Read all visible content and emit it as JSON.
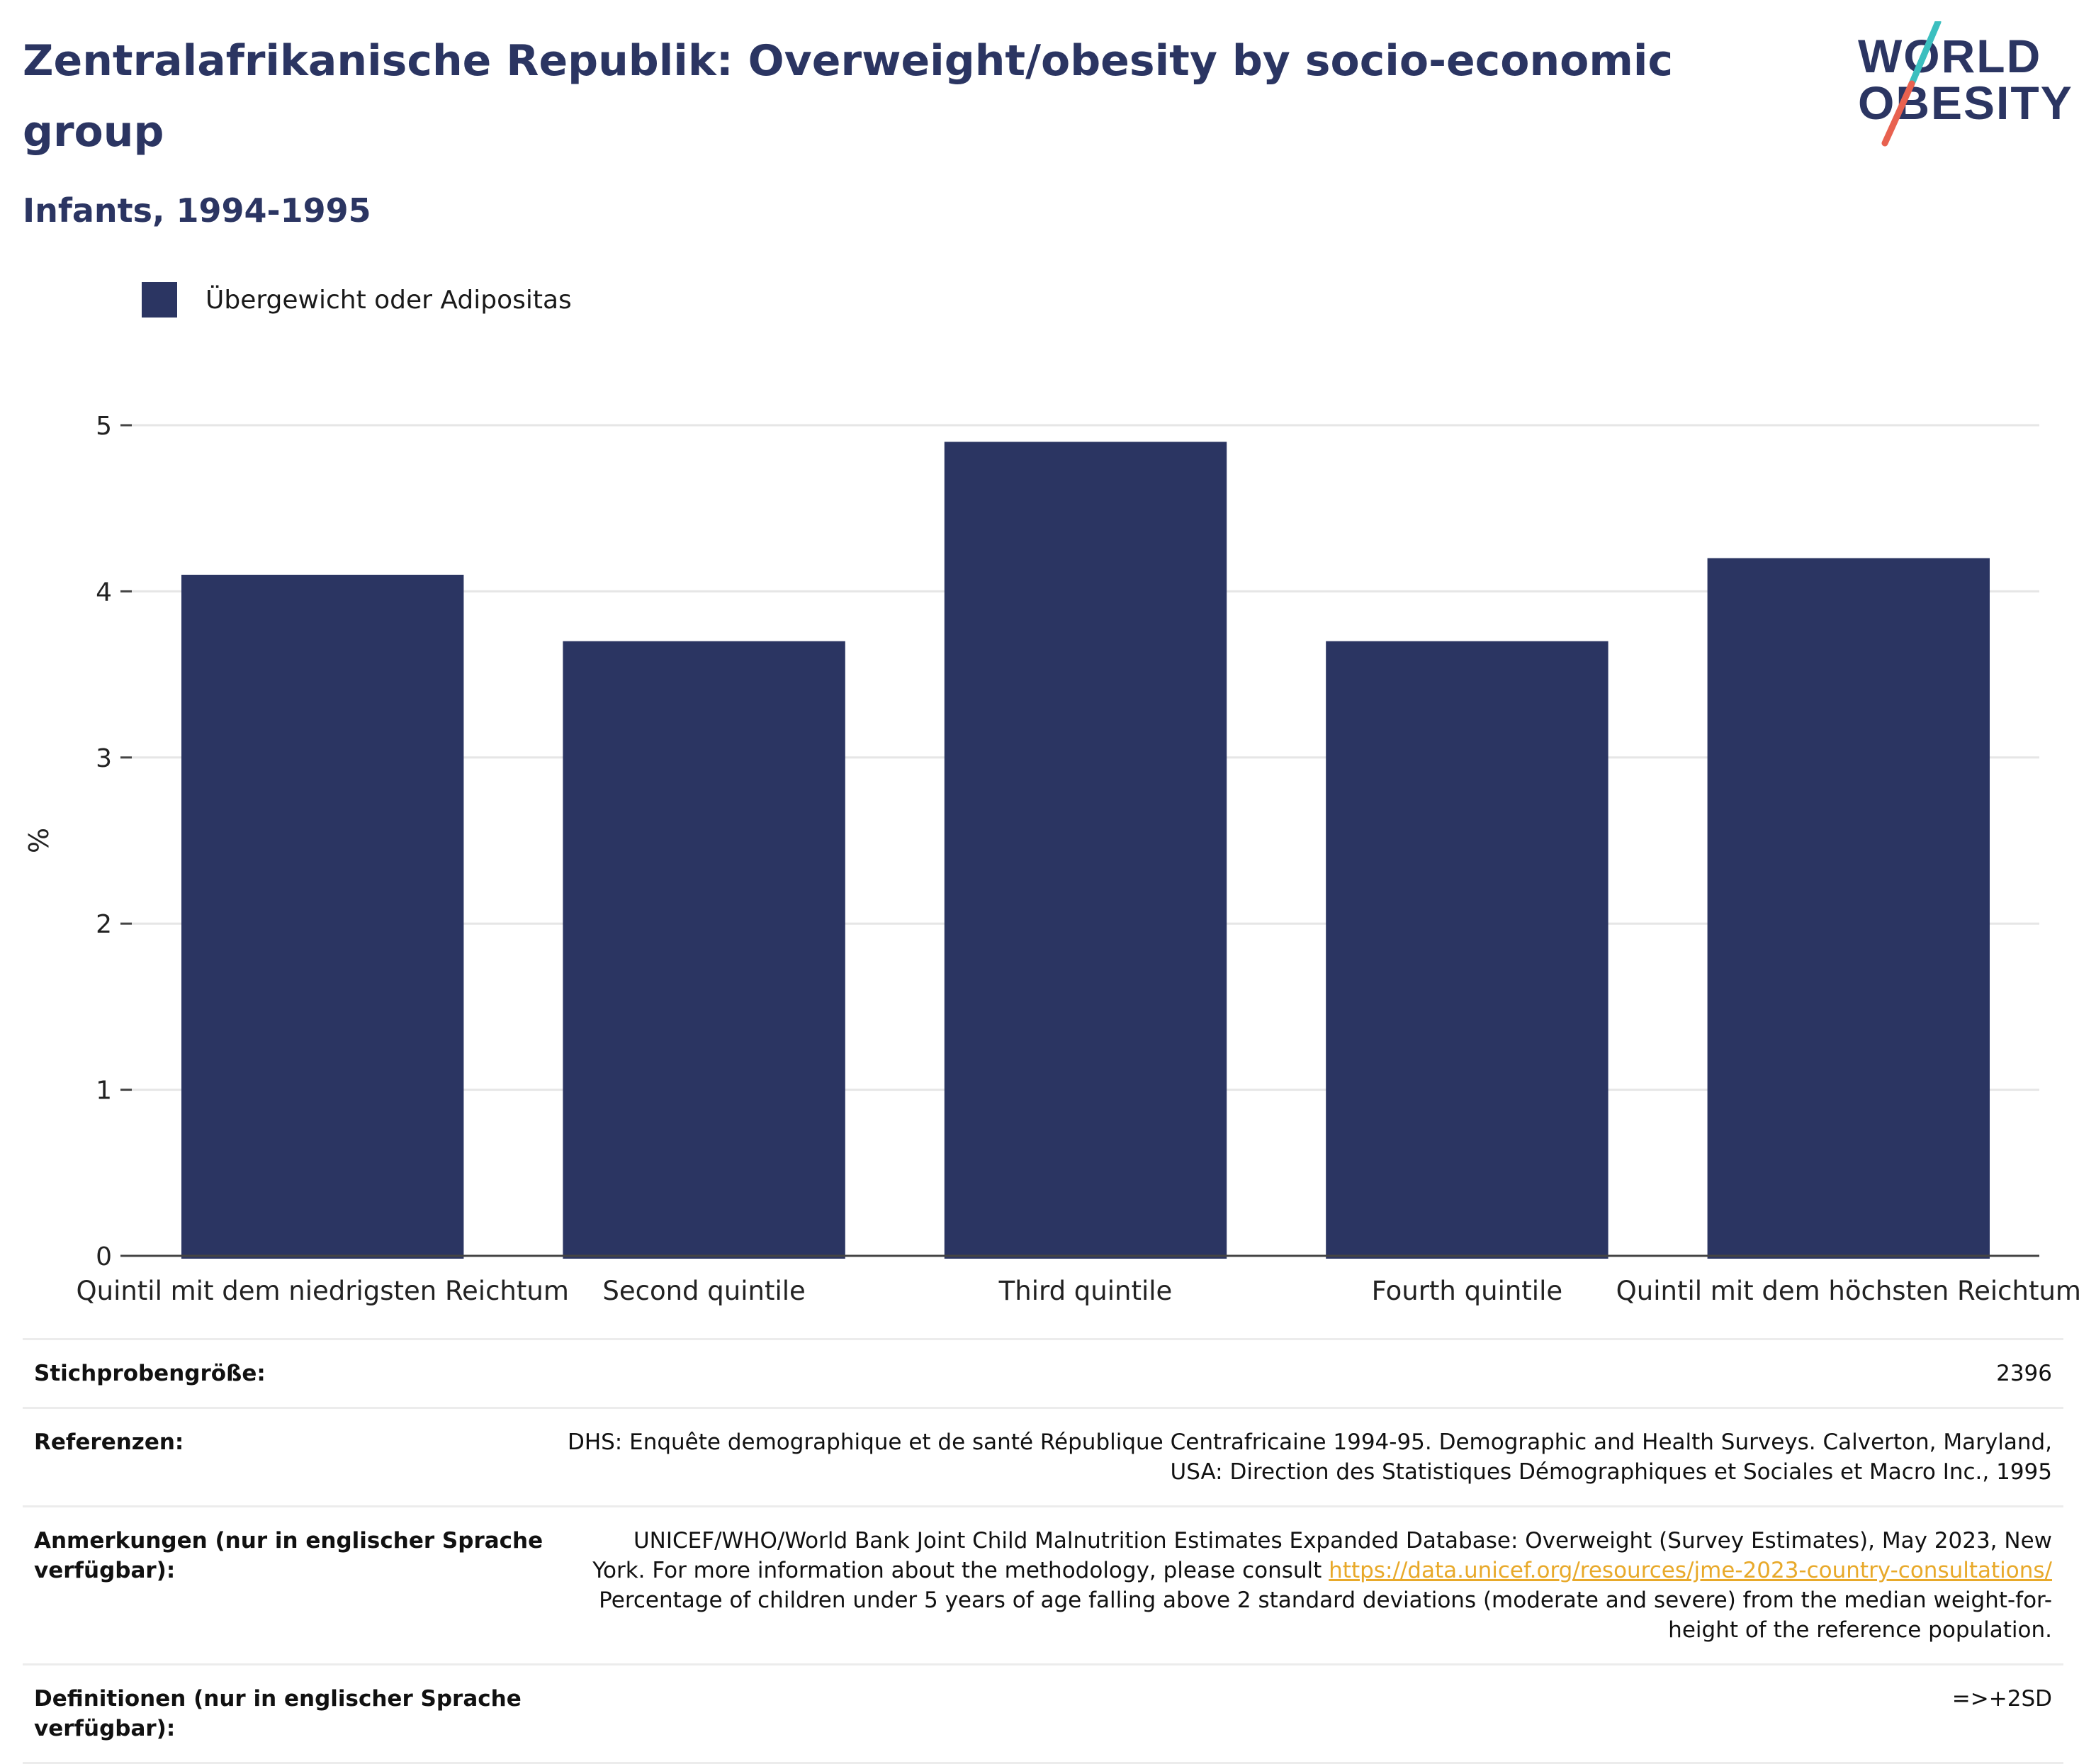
{
  "header": {
    "title": "Zentralafrikanische Republik: Overweight/obesity by socio-economic group",
    "subtitle": "Infants, 1994-1995"
  },
  "logo": {
    "line1": "WORLD",
    "line2": "OBESITY",
    "colors": {
      "text": "#2b3562",
      "slash_top": "#3bbfbf",
      "slash_bottom": "#e8614f"
    }
  },
  "legend": {
    "label": "Übergewicht oder Adipositas",
    "color": "#2b3562"
  },
  "chart_data": {
    "type": "bar",
    "categories": [
      "Quintil mit dem niedrigsten Reichtum",
      "Second quintile",
      "Third quintile",
      "Fourth quintile",
      "Quintil mit dem höchsten Reichtum"
    ],
    "series": [
      {
        "name": "Übergewicht oder Adipositas",
        "values": [
          4.1,
          3.7,
          4.9,
          3.7,
          4.2
        ],
        "color": "#2b3562"
      }
    ],
    "ylabel": "%",
    "ylim": [
      0,
      5
    ],
    "yticks": [
      0,
      1,
      2,
      3,
      4,
      5
    ],
    "grid": true,
    "legend_position": "top-left"
  },
  "info": {
    "sample": {
      "label": "Stichprobengröße:",
      "value": "2396"
    },
    "references": {
      "label": "Referenzen:",
      "line1": "DHS: Enquête demographique et de santé République Centrafricaine 1994-95. Demographic and Health Surveys. Calverton, Maryland,",
      "line2": "USA: Direction des Statistiques Démographiques et Sociales et Macro Inc., 1995"
    },
    "notes": {
      "label": "Anmerkungen (nur in englischer Sprache verfügbar):",
      "line1": "UNICEF/WHO/World Bank Joint Child Malnutrition Estimates Expanded Database: Overweight (Survey Estimates), May 2023, New",
      "line2_pre": "York. For more information about the methodology, please consult ",
      "link": "https://data.unicef.org/resources/jme-2023-country-consultations/",
      "line3": "Percentage of children under 5 years of age falling above 2 standard deviations (moderate and severe) from the median weight-for-",
      "line4": "height of the reference population."
    },
    "definitions": {
      "label": "Definitionen (nur in englischer Sprache verfügbar):",
      "value": "=>+2SD"
    }
  }
}
